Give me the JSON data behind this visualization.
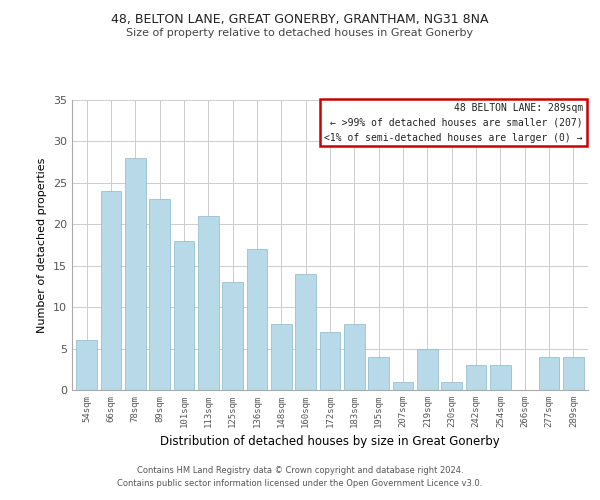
{
  "title1": "48, BELTON LANE, GREAT GONERBY, GRANTHAM, NG31 8NA",
  "title2": "Size of property relative to detached houses in Great Gonerby",
  "xlabel": "Distribution of detached houses by size in Great Gonerby",
  "ylabel": "Number of detached properties",
  "bar_color": "#b8d9e8",
  "bar_edge_color": "#8ab8cc",
  "categories": [
    "54sqm",
    "66sqm",
    "78sqm",
    "89sqm",
    "101sqm",
    "113sqm",
    "125sqm",
    "136sqm",
    "148sqm",
    "160sqm",
    "172sqm",
    "183sqm",
    "195sqm",
    "207sqm",
    "219sqm",
    "230sqm",
    "242sqm",
    "254sqm",
    "266sqm",
    "277sqm",
    "289sqm"
  ],
  "values": [
    6,
    24,
    28,
    23,
    18,
    21,
    13,
    17,
    8,
    14,
    7,
    8,
    4,
    1,
    5,
    1,
    3,
    3,
    0,
    4,
    4
  ],
  "ylim": [
    0,
    35
  ],
  "yticks": [
    0,
    5,
    10,
    15,
    20,
    25,
    30,
    35
  ],
  "annotation_title": "48 BELTON LANE: 289sqm",
  "annotation_line1": "← >99% of detached houses are smaller (207)",
  "annotation_line2": "<1% of semi-detached houses are larger (0) →",
  "box_edge_color": "#cc0000",
  "footer1": "Contains HM Land Registry data © Crown copyright and database right 2024.",
  "footer2": "Contains public sector information licensed under the Open Government Licence v3.0.",
  "background_color": "#ffffff",
  "grid_color": "#cccccc"
}
